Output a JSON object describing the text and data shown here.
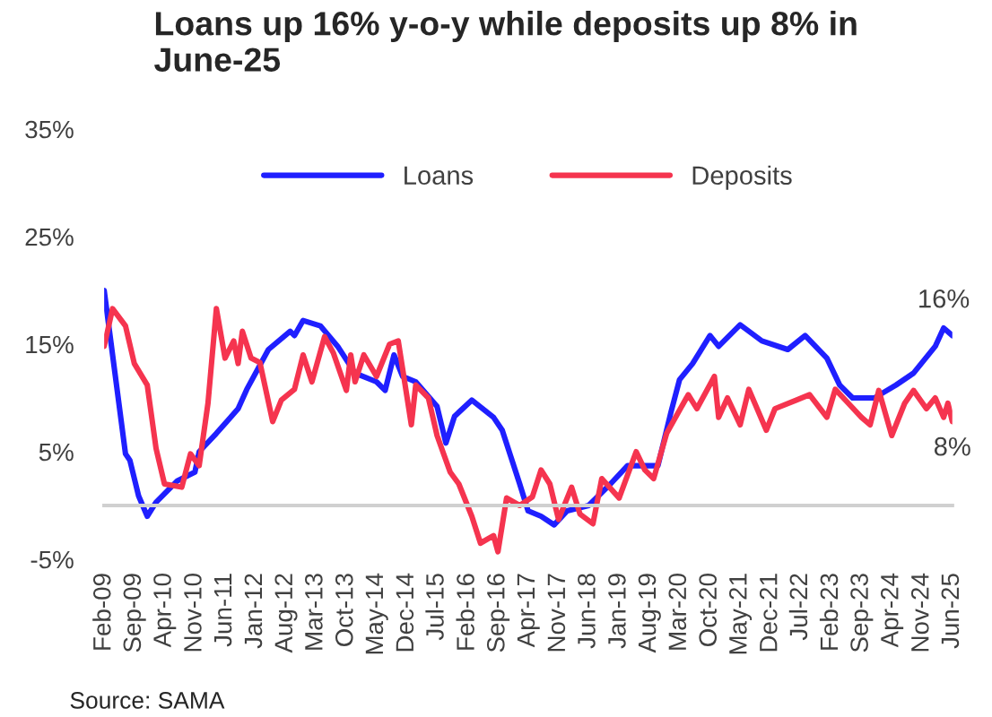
{
  "chart_data": {
    "type": "line",
    "title": "Loans up 16% y-o-y while deposits up 8% in June-25",
    "series": [
      {
        "name": "Loans",
        "color": "#1f1fff",
        "x": [
          "2009-02",
          "2009-07",
          "2009-08",
          "2009-10",
          "2009-12",
          "2010-02",
          "2010-07",
          "2010-11",
          "2010-12",
          "2011-04",
          "2011-09",
          "2011-11",
          "2012-04",
          "2012-09",
          "2012-10",
          "2012-12",
          "2013-04",
          "2013-08",
          "2013-12",
          "2014-05",
          "2014-07",
          "2014-09",
          "2014-11",
          "2015-02",
          "2015-07",
          "2015-09",
          "2015-11",
          "2016-03",
          "2016-08",
          "2016-10",
          "2017-02",
          "2017-04",
          "2017-07",
          "2017-10",
          "2018-01",
          "2018-06",
          "2018-11",
          "2019-03",
          "2019-10",
          "2020-01",
          "2020-03",
          "2020-06",
          "2020-10",
          "2020-12",
          "2021-05",
          "2021-10",
          "2022-04",
          "2022-08",
          "2023-01",
          "2023-04",
          "2023-07",
          "2023-12",
          "2024-05",
          "2024-09",
          "2025-02",
          "2025-04",
          "2025-06"
        ],
        "values": [
          20,
          4.8,
          4.2,
          0.9,
          -1.0,
          0.3,
          2.3,
          3.1,
          5,
          6.7,
          9,
          10.8,
          14.5,
          16.2,
          15.8,
          17.2,
          16.7,
          14.8,
          12.3,
          11.5,
          10.7,
          14,
          12,
          11.5,
          9.2,
          5.8,
          8.3,
          9.8,
          8.2,
          7,
          2,
          -0.5,
          -1,
          -1.8,
          -0.5,
          0,
          2,
          3.7,
          3.7,
          8.7,
          11.7,
          13.2,
          15.8,
          14.8,
          16.8,
          15.3,
          14.5,
          15.8,
          13.7,
          11.2,
          10,
          10,
          11.2,
          12.3,
          14.8,
          16.5,
          15.8
        ]
      },
      {
        "name": "Deposits",
        "color": "#f5344f",
        "x": [
          "2009-02",
          "2009-04",
          "2009-07",
          "2009-09",
          "2009-12",
          "2010-02",
          "2010-04",
          "2010-08",
          "2010-10",
          "2010-12",
          "2011-02",
          "2011-04",
          "2011-06",
          "2011-08",
          "2011-09",
          "2011-10",
          "2011-12",
          "2012-02",
          "2012-05",
          "2012-07",
          "2012-10",
          "2012-12",
          "2013-02",
          "2013-05",
          "2013-07",
          "2013-10",
          "2013-11",
          "2013-12",
          "2014-02",
          "2014-05",
          "2014-08",
          "2014-10",
          "2015-01",
          "2015-02",
          "2015-05",
          "2015-07",
          "2015-10",
          "2015-12",
          "2016-03",
          "2016-05",
          "2016-08",
          "2016-09",
          "2016-11",
          "2017-02",
          "2017-05",
          "2017-07",
          "2017-09",
          "2017-11",
          "2018-02",
          "2018-04",
          "2018-07",
          "2018-09",
          "2019-01",
          "2019-05",
          "2019-07",
          "2019-09",
          "2019-12",
          "2020-05",
          "2020-07",
          "2020-11",
          "2020-12",
          "2021-02",
          "2021-05",
          "2021-07",
          "2021-11",
          "2022-01",
          "2022-06",
          "2022-09",
          "2023-01",
          "2023-03",
          "2023-06",
          "2023-09",
          "2023-11",
          "2024-01",
          "2024-04",
          "2024-07",
          "2024-09",
          "2024-12",
          "2025-02",
          "2025-04",
          "2025-05",
          "2025-06"
        ],
        "values": [
          14.8,
          18.3,
          16.7,
          13.2,
          11.2,
          5.3,
          2,
          1.7,
          4.8,
          3.7,
          9.5,
          18.3,
          13.7,
          15.3,
          13.2,
          16.2,
          13.7,
          13.3,
          7.8,
          9.8,
          10.8,
          14,
          11.5,
          15.7,
          14.2,
          10.7,
          14,
          11.5,
          14,
          12,
          15,
          15.3,
          7.5,
          11.2,
          10,
          6.5,
          3.1,
          2,
          -1,
          -3.5,
          -2.8,
          -4.3,
          0.7,
          0,
          0.8,
          3.3,
          2,
          -1.3,
          1.7,
          -0.8,
          -1.7,
          2.5,
          0.7,
          5,
          3.3,
          2.5,
          6.7,
          10.3,
          9,
          12,
          8.2,
          10,
          7.5,
          10.8,
          7,
          9,
          9.8,
          10.3,
          8.2,
          10.8,
          9.5,
          8.2,
          7.5,
          10.7,
          6.5,
          9.5,
          10.7,
          9,
          10,
          8.2,
          9.5,
          7.8
        ]
      }
    ],
    "xlim": [
      "2009-02",
      "2025-06"
    ],
    "xticks": [
      {
        "value": "2009-02",
        "label": "Feb-09"
      },
      {
        "value": "2009-09",
        "label": "Sep-09"
      },
      {
        "value": "2010-04",
        "label": "Apr-10"
      },
      {
        "value": "2010-11",
        "label": "Nov-10"
      },
      {
        "value": "2011-06",
        "label": "Jun-11"
      },
      {
        "value": "2012-01",
        "label": "Jan-12"
      },
      {
        "value": "2012-08",
        "label": "Aug-12"
      },
      {
        "value": "2013-03",
        "label": "Mar-13"
      },
      {
        "value": "2013-10",
        "label": "Oct-13"
      },
      {
        "value": "2014-05",
        "label": "May-14"
      },
      {
        "value": "2014-12",
        "label": "Dec-14"
      },
      {
        "value": "2015-07",
        "label": "Jul-15"
      },
      {
        "value": "2016-02",
        "label": "Feb-16"
      },
      {
        "value": "2016-09",
        "label": "Sep-16"
      },
      {
        "value": "2017-04",
        "label": "Apr-17"
      },
      {
        "value": "2017-11",
        "label": "Nov-17"
      },
      {
        "value": "2018-06",
        "label": "Jun-18"
      },
      {
        "value": "2019-01",
        "label": "Jan-19"
      },
      {
        "value": "2019-08",
        "label": "Aug-19"
      },
      {
        "value": "2020-03",
        "label": "Mar-20"
      },
      {
        "value": "2020-10",
        "label": "Oct-20"
      },
      {
        "value": "2021-05",
        "label": "May-21"
      },
      {
        "value": "2021-12",
        "label": "Dec-21"
      },
      {
        "value": "2022-07",
        "label": "Jul-22"
      },
      {
        "value": "2023-02",
        "label": "Feb-23"
      },
      {
        "value": "2023-09",
        "label": "Sep-23"
      },
      {
        "value": "2024-04",
        "label": "Apr-24"
      },
      {
        "value": "2024-11",
        "label": "Nov-24"
      },
      {
        "value": "2025-06",
        "label": "Jun-25"
      }
    ],
    "ylim": [
      -5,
      35
    ],
    "yticks": [
      {
        "value": -5,
        "label": "-5%"
      },
      {
        "value": 5,
        "label": "5%"
      },
      {
        "value": 15,
        "label": "15%"
      },
      {
        "value": 25,
        "label": "25%"
      },
      {
        "value": 35,
        "label": "35%"
      }
    ],
    "annotations": [
      {
        "text": "16%",
        "x": "2025-04",
        "y": 16.5
      },
      {
        "text": "8%",
        "x": "2025-06",
        "y": 7.8
      },
      "Source: SAMA"
    ],
    "legend": "top",
    "grid": false,
    "line_style": "solid",
    "marker": "none"
  }
}
